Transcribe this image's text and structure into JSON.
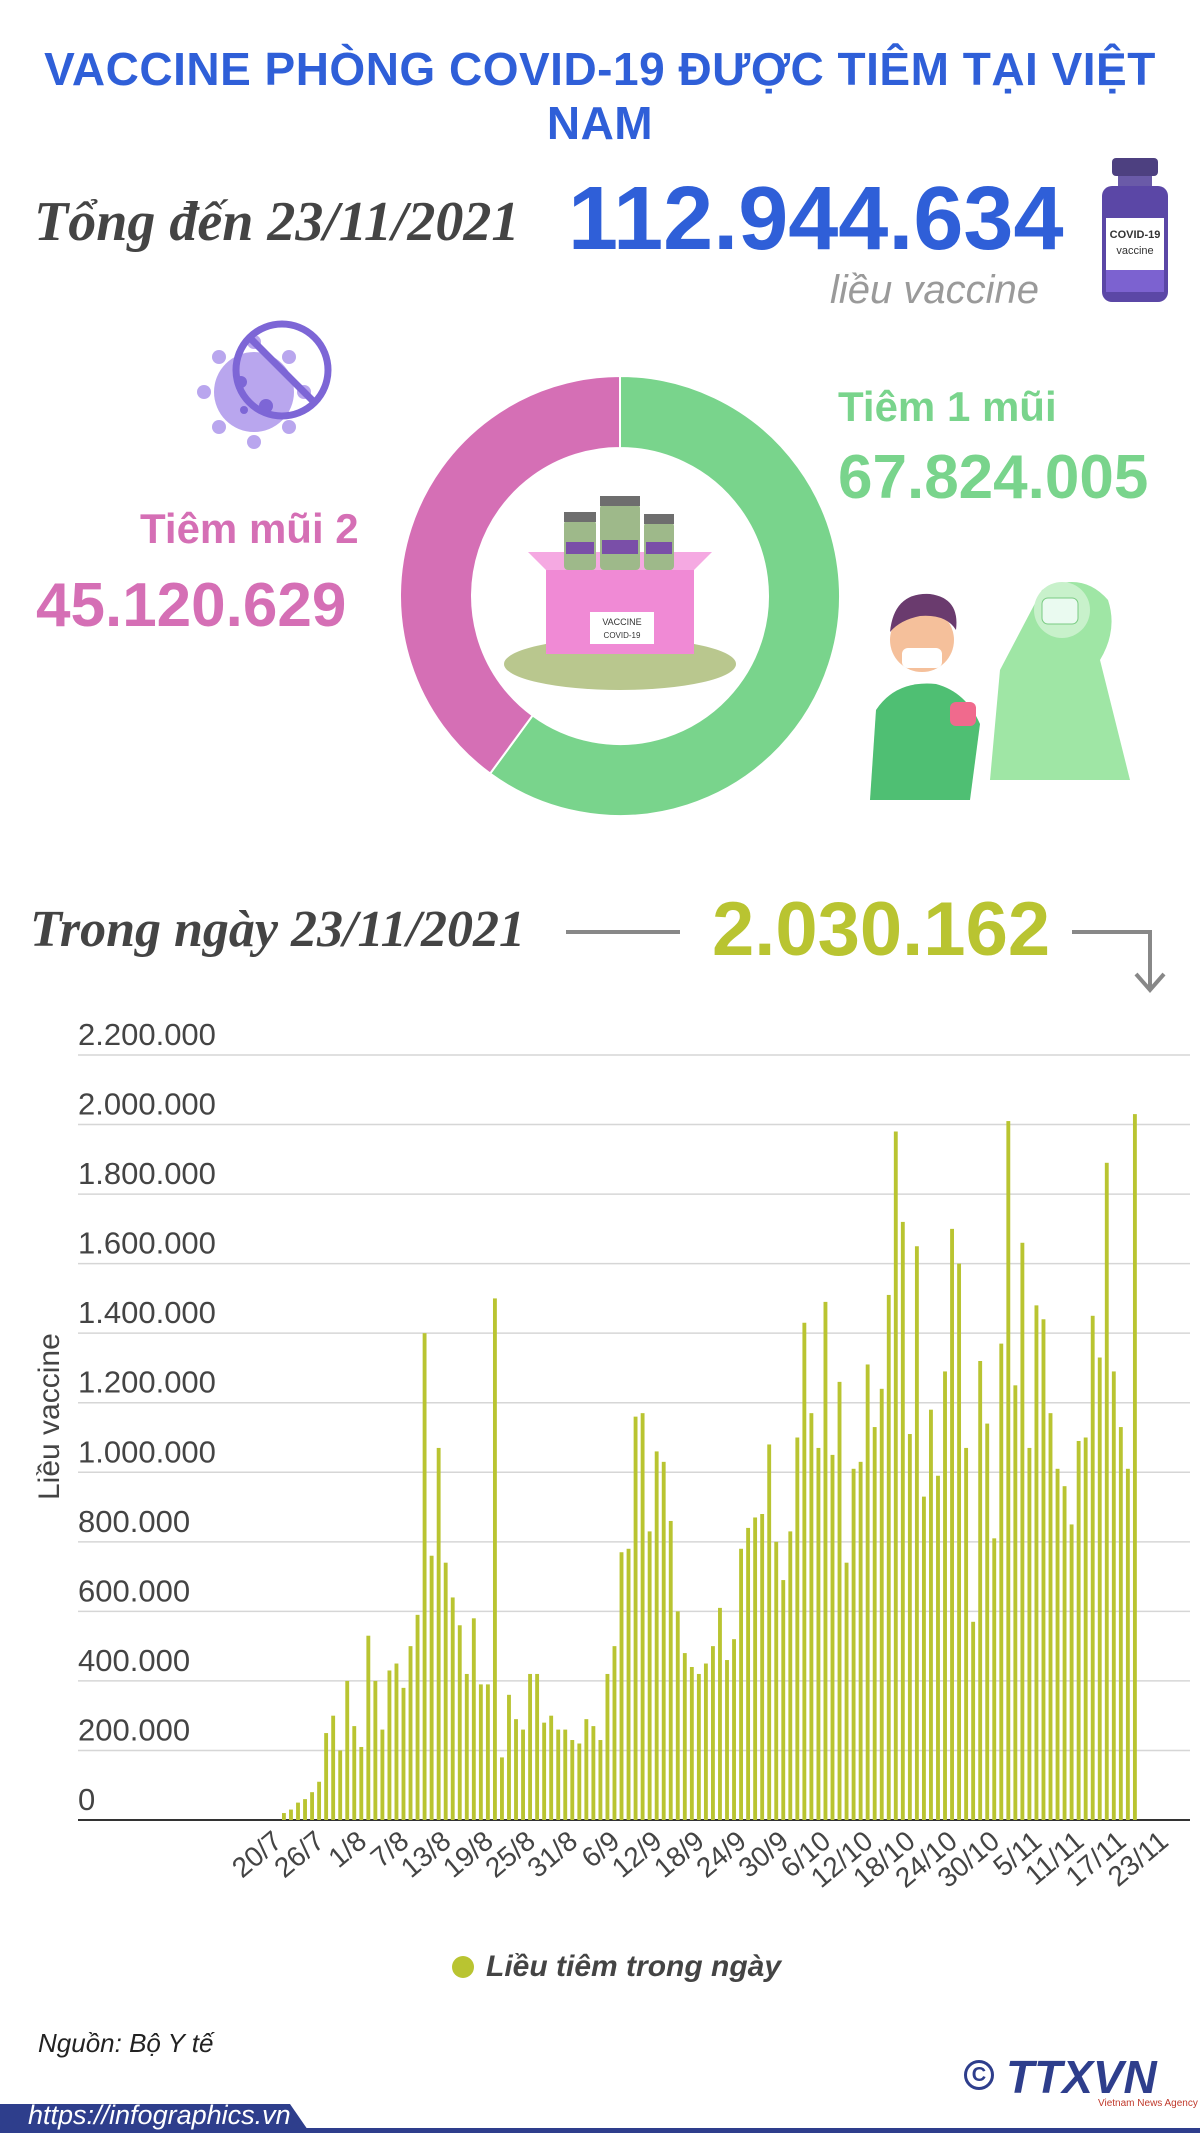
{
  "header": {
    "title": "VACCINE PHÒNG COVID-19 ĐƯỢC TIÊM TẠI VIỆT NAM"
  },
  "summary": {
    "total_label": "Tổng đến 23/11/2021",
    "total_value": "112.944.634",
    "total_unit": "liều vaccine",
    "dose1_label": "Tiêm 1 mũi",
    "dose1_value": "67.824.005",
    "dose2_label": "Tiêm mũi 2",
    "dose2_value": "45.120.629",
    "day_label": "Trong ngày 23/11/2021",
    "day_value": "2.030.162",
    "vial_text": [
      "COVID-19",
      "vaccine"
    ],
    "box_text": [
      "VACCINE",
      "COVID-19"
    ],
    "colors": {
      "dose1": "#79d48c",
      "dose2": "#d56fb5",
      "accent": "#2f5fd8",
      "day": "#b9c431"
    }
  },
  "donut_data": {
    "type": "pie",
    "slices": [
      {
        "label": "Tiêm 1 mũi",
        "value": 67824005,
        "color": "#79d48c"
      },
      {
        "label": "Tiêm mũi 2",
        "value": 45120629,
        "color": "#d56fb5"
      }
    ]
  },
  "chart_data": {
    "type": "bar",
    "ylabel": "Liều vaccine",
    "ylim": [
      0,
      2200000
    ],
    "yticks": [
      "0",
      "200.000",
      "400.000",
      "600.000",
      "800.000",
      "1.000.000",
      "1.200.000",
      "1.400.000",
      "1.600.000",
      "1.800.000",
      "2.000.000",
      "2.200.000"
    ],
    "ytick_values": [
      0,
      200000,
      400000,
      600000,
      800000,
      1000000,
      1200000,
      1400000,
      1600000,
      1800000,
      2000000,
      2200000
    ],
    "xtick_labels": [
      "20/7",
      "26/7",
      "1/8",
      "7/8",
      "13/8",
      "19/8",
      "25/8",
      "31/8",
      "6/9",
      "12/9",
      "18/9",
      "24/9",
      "30/9",
      "6/10",
      "12/10",
      "18/10",
      "24/10",
      "30/10",
      "5/11",
      "11/11",
      "17/11",
      "23/11"
    ],
    "xtick_every": 6,
    "color": "#b9c431",
    "legend": "Liều tiêm trong ngày",
    "grid": true,
    "start_label": "20/7",
    "values": [
      20000,
      30000,
      50000,
      60000,
      80000,
      110000,
      250000,
      300000,
      200000,
      400000,
      270000,
      210000,
      530000,
      400000,
      260000,
      430000,
      450000,
      380000,
      500000,
      590000,
      1400000,
      760000,
      1070000,
      740000,
      640000,
      560000,
      420000,
      580000,
      390000,
      390000,
      1500000,
      180000,
      360000,
      290000,
      260000,
      420000,
      420000,
      280000,
      300000,
      260000,
      260000,
      230000,
      220000,
      290000,
      270000,
      230000,
      420000,
      500000,
      770000,
      780000,
      1160000,
      1170000,
      830000,
      1060000,
      1030000,
      860000,
      600000,
      480000,
      440000,
      420000,
      450000,
      500000,
      610000,
      460000,
      520000,
      780000,
      840000,
      870000,
      880000,
      1080000,
      800000,
      690000,
      830000,
      1100000,
      1430000,
      1170000,
      1070000,
      1490000,
      1050000,
      1260000,
      740000,
      1010000,
      1030000,
      1310000,
      1130000,
      1240000,
      1510000,
      1980000,
      1720000,
      1110000,
      1650000,
      930000,
      1180000,
      990000,
      1290000,
      1700000,
      1600000,
      1070000,
      570000,
      1320000,
      1140000,
      810000,
      1370000,
      2010000,
      1250000,
      1660000,
      1070000,
      1480000,
      1440000,
      1170000,
      1010000,
      960000,
      850000,
      1090000,
      1100000,
      1450000,
      1330000,
      1890000,
      1290000,
      1130000,
      1010000,
      2030000
    ]
  },
  "footer": {
    "source": "Nguồn: Bộ Y tế",
    "url": "https://infographics.vn",
    "brand": "TTXVN",
    "brand_sub": "Vietnam News Agency"
  }
}
